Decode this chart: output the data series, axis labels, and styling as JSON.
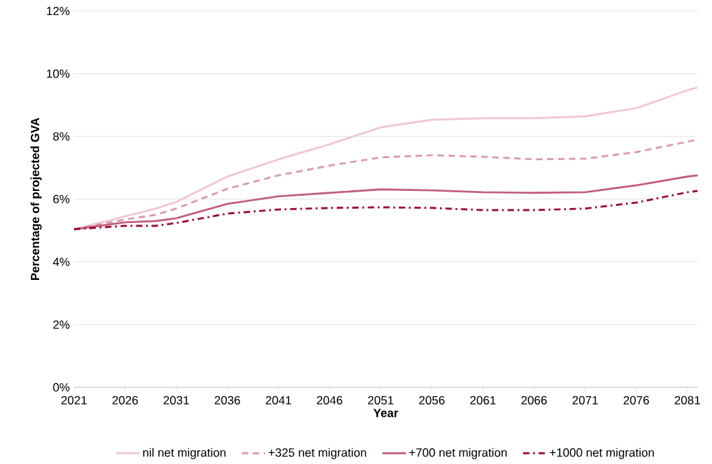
{
  "chart_data": {
    "type": "line",
    "xlabel": "Year",
    "ylabel": "Percentage of projected GVA",
    "x": [
      2021,
      2026,
      2029,
      2031,
      2036,
      2041,
      2046,
      2051,
      2056,
      2061,
      2066,
      2071,
      2076,
      2081,
      2082
    ],
    "series": [
      {
        "name": "nil net migration",
        "color": "#f0c8d2",
        "line_style": "solid",
        "values": [
          5.04,
          5.45,
          5.7,
          5.91,
          6.72,
          7.27,
          7.75,
          8.29,
          8.53,
          8.58,
          8.58,
          8.64,
          8.9,
          9.47,
          9.56
        ]
      },
      {
        "name": "+325 net migration",
        "color": "#dc9aac",
        "line_style": "dashed",
        "values": [
          5.04,
          5.35,
          5.5,
          5.7,
          6.33,
          6.76,
          7.07,
          7.33,
          7.4,
          7.35,
          7.27,
          7.29,
          7.5,
          7.83,
          7.9
        ]
      },
      {
        "name": "+700 net migration",
        "color": "#c0607c",
        "line_style": "solid",
        "values": [
          5.04,
          5.26,
          5.3,
          5.39,
          5.85,
          6.09,
          6.2,
          6.31,
          6.28,
          6.22,
          6.2,
          6.22,
          6.44,
          6.72,
          6.76
        ]
      },
      {
        "name": "+1000 net migration",
        "color": "#9e0b3a",
        "line_style": "dashdot",
        "values": [
          5.04,
          5.15,
          5.15,
          5.24,
          5.54,
          5.67,
          5.72,
          5.74,
          5.72,
          5.65,
          5.65,
          5.7,
          5.89,
          6.22,
          6.26
        ]
      }
    ],
    "xlim": [
      2021,
      2082
    ],
    "xticks": [
      2021,
      2026,
      2031,
      2036,
      2041,
      2046,
      2051,
      2056,
      2061,
      2066,
      2071,
      2076,
      2081
    ],
    "ylim": [
      0,
      12
    ],
    "yticks": [
      {
        "value": 0,
        "label": "0%"
      },
      {
        "value": 2,
        "label": "2%"
      },
      {
        "value": 4,
        "label": "4%"
      },
      {
        "value": 6,
        "label": "6%"
      },
      {
        "value": 8,
        "label": "8%"
      },
      {
        "value": 10,
        "label": "10%"
      },
      {
        "value": 12,
        "label": "12%"
      }
    ],
    "grid": "y",
    "legend": "bottom",
    "marker": "none"
  }
}
